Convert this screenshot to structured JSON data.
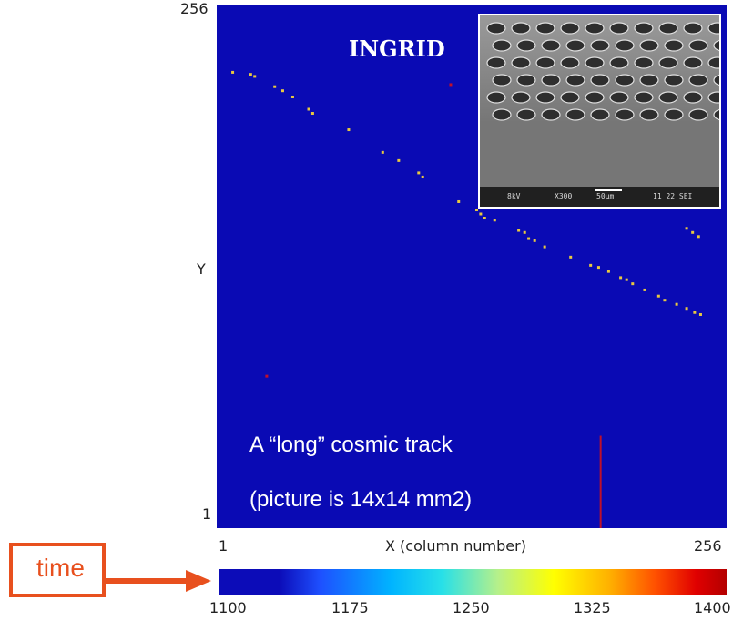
{
  "chart_data": {
    "type": "heatmap",
    "title": "",
    "xlabel": "X (column number)",
    "ylabel": "Y",
    "x_ticks": [
      "1",
      "256"
    ],
    "y_ticks": [
      "256",
      "1"
    ],
    "xlim": [
      1,
      256
    ],
    "ylim": [
      1,
      256
    ],
    "background_color": "#0a0ab4",
    "hits": [
      [
        9,
        223
      ],
      [
        18,
        222
      ],
      [
        20,
        221
      ],
      [
        30,
        216
      ],
      [
        34,
        214
      ],
      [
        39,
        211
      ],
      [
        47,
        205
      ],
      [
        49,
        203
      ],
      [
        67,
        195
      ],
      [
        84,
        184
      ],
      [
        92,
        180
      ],
      [
        102,
        174
      ],
      [
        104,
        172
      ],
      [
        122,
        160
      ],
      [
        131,
        156
      ],
      [
        133,
        154
      ],
      [
        135,
        152
      ],
      [
        140,
        151
      ],
      [
        152,
        146
      ],
      [
        155,
        145
      ],
      [
        157,
        142
      ],
      [
        160,
        141
      ],
      [
        165,
        138
      ],
      [
        178,
        133
      ],
      [
        188,
        129
      ],
      [
        192,
        128
      ],
      [
        197,
        126
      ],
      [
        203,
        123
      ],
      [
        206,
        122
      ],
      [
        209,
        120
      ],
      [
        215,
        117
      ],
      [
        222,
        114
      ],
      [
        225,
        112
      ],
      [
        231,
        110
      ],
      [
        236,
        108
      ],
      [
        240,
        106
      ],
      [
        243,
        105
      ],
      [
        236,
        147
      ],
      [
        239,
        145
      ],
      [
        242,
        143
      ],
      [
        118,
        217
      ],
      [
        26,
        75
      ]
    ],
    "vertical_streak": {
      "x": 193,
      "y_from": 1,
      "y_to": 46
    },
    "annotations": [
      "INGRID",
      "A “long” cosmic track",
      "(picture is 14x14 mm2)"
    ],
    "inset": {
      "title": "INGRID",
      "footer": [
        "8kV",
        "X300",
        "50μm",
        "11 22 SEI"
      ]
    },
    "colorbar": {
      "label": "time",
      "ticks": [
        1100,
        1175,
        1250,
        1325,
        1400
      ],
      "range": [
        1100,
        1400
      ]
    }
  },
  "colors": {
    "plot_background": "#0a0ab4",
    "hit_color": "#e8c840",
    "streak_color": "#c0102a",
    "label_accent": "#e8501e"
  }
}
